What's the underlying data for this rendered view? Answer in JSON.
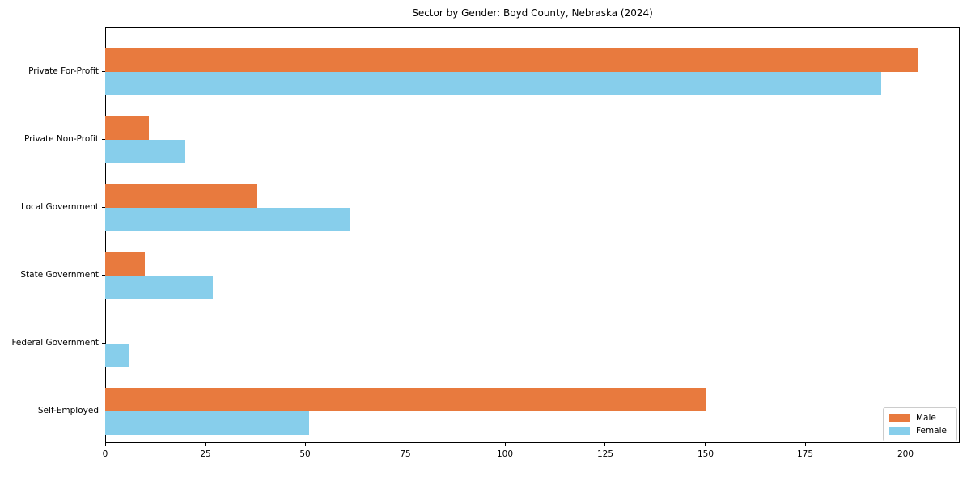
{
  "chart_data": {
    "type": "bar",
    "orientation": "horizontal",
    "title": "Sector by Gender: Boyd County, Nebraska (2024)",
    "categories": [
      "Private For-Profit",
      "Private Non-Profit",
      "Local Government",
      "State Government",
      "Federal Government",
      "Self-Employed"
    ],
    "series": [
      {
        "name": "Male",
        "color": "#E87A3E",
        "values": [
          203,
          11,
          38,
          10,
          0,
          150
        ]
      },
      {
        "name": "Female",
        "color": "#87CEEB",
        "values": [
          194,
          20,
          61,
          27,
          6,
          51
        ]
      }
    ],
    "xlabel": "",
    "ylabel": "",
    "x_ticks": [
      0,
      25,
      50,
      75,
      100,
      125,
      150,
      175,
      200
    ],
    "xlim": [
      0,
      213.6
    ],
    "grid": false,
    "legend_position": "lower right",
    "colors": {
      "spine": "#000000",
      "text": "#000000",
      "legend_border": "#cccccc"
    }
  }
}
